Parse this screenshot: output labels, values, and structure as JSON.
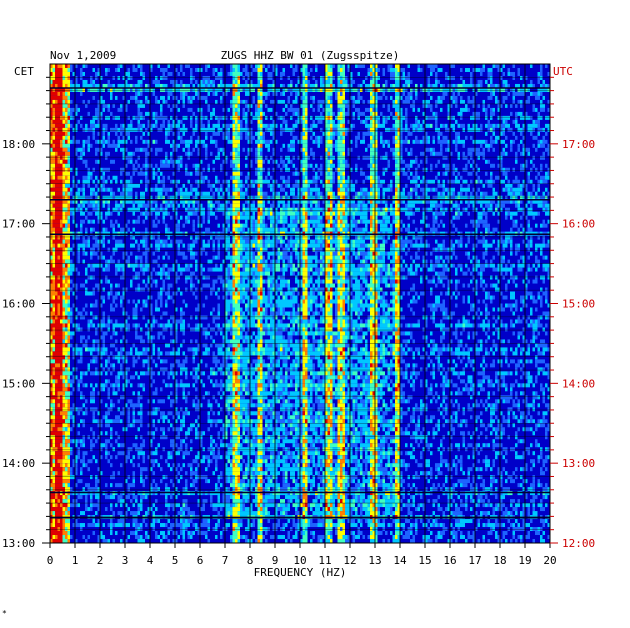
{
  "chart_data": {
    "type": "heatmap",
    "title_left": "Nov 1,2009",
    "title": "ZUGS HHZ BW 01 (Zugsspitze)",
    "xlabel": "FREQUENCY (HZ)",
    "ylabel_left": "CET",
    "ylabel_right": "UTC",
    "xlim": [
      0,
      20
    ],
    "x_ticks": [
      "0",
      "1",
      "2",
      "3",
      "4",
      "5",
      "6",
      "7",
      "8",
      "9",
      "10",
      "11",
      "12",
      "13",
      "14",
      "15",
      "16",
      "17",
      "18",
      "19",
      "20"
    ],
    "time_range_cet_hours": [
      13,
      19
    ],
    "y_ticks_left": [
      "13:00",
      "14:00",
      "15:00",
      "16:00",
      "17:00",
      "18:00"
    ],
    "y_ticks_right": [
      "12:00",
      "13:00",
      "14:00",
      "15:00",
      "16:00",
      "17:00"
    ],
    "colormap": [
      "#00008b",
      "#0000ff",
      "#1e64ff",
      "#00c8ff",
      "#40ffc0",
      "#ffff00",
      "#ff8000",
      "#e00000"
    ],
    "hot_frequency_bands_hz": [
      0.3,
      7.4,
      8.4,
      10.2,
      11.2,
      11.7,
      12.9,
      13.9
    ],
    "horizontal_event_lines_cet": [
      "13:19",
      "13:38",
      "16:52",
      "17:18",
      "18:42"
    ]
  },
  "colors": {
    "left_axis_text": "#000000",
    "right_axis_text": "#cc0000",
    "grid": "#000000"
  },
  "footnote": "*"
}
